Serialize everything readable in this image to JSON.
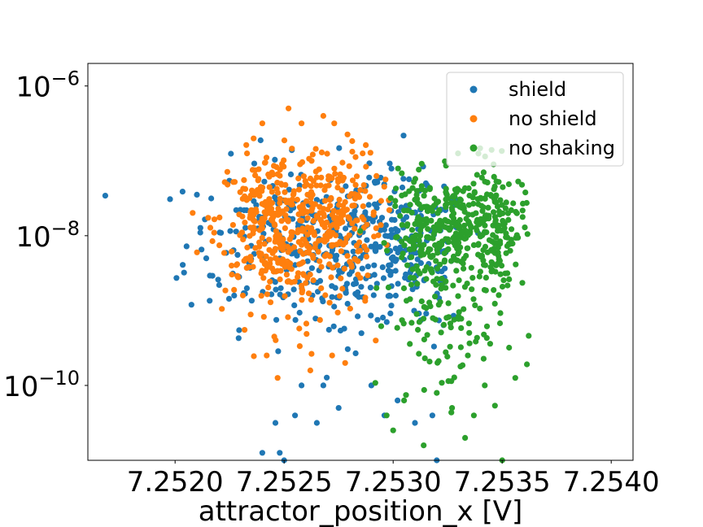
{
  "chart_data": {
    "type": "scatter",
    "title": "",
    "xlabel": "attractor_position_x [V]",
    "ylabel": "",
    "yscale": "log",
    "xlim": [
      7.2516,
      7.2541
    ],
    "ylim": [
      1e-11,
      2e-06
    ],
    "x_ticks": [
      {
        "value": 7.252,
        "label": "7.2520"
      },
      {
        "value": 7.2525,
        "label": "7.2525"
      },
      {
        "value": 7.253,
        "label": "7.2530"
      },
      {
        "value": 7.2535,
        "label": "7.2535"
      },
      {
        "value": 7.254,
        "label": "7.2540"
      }
    ],
    "y_ticks": [
      {
        "value": 1e-06,
        "base": "10",
        "exp": "−6"
      },
      {
        "value": 1e-08,
        "base": "10",
        "exp": "−8"
      },
      {
        "value": 1e-10,
        "base": "10",
        "exp": "−10"
      }
    ],
    "grid": false,
    "legend": "top-right",
    "series": [
      {
        "name": "shield",
        "color": "#1f77b4",
        "clusters": [
          {
            "x": 7.25255,
            "sx": 0.00025,
            "logy": -8.1,
            "sy": 0.55,
            "n": 220
          },
          {
            "x": 7.25285,
            "sx": 0.00015,
            "logy": -8.2,
            "sy": 0.5,
            "n": 140
          },
          {
            "x": 7.2531,
            "sx": 0.00012,
            "logy": -8.3,
            "sy": 0.5,
            "n": 110
          }
        ],
        "outliers": [
          [
            7.25248,
            -10.9
          ],
          [
            7.2525,
            -11.0
          ],
          [
            7.25246,
            -10.5
          ],
          [
            7.25255,
            -10.4
          ],
          [
            7.25275,
            -10.3
          ],
          [
            7.25258,
            -10.0
          ],
          [
            7.2529,
            -10.0
          ],
          [
            7.25296,
            -10.4
          ],
          [
            7.25302,
            -10.2
          ],
          [
            7.2531,
            -10.5
          ],
          [
            7.25318,
            -10.4
          ],
          [
            7.2532,
            -11.0
          ],
          [
            7.25268,
            -10.0
          ],
          [
            7.2524,
            -10.9
          ],
          [
            7.25265,
            -10.5
          ],
          [
            7.25315,
            -7.3
          ],
          [
            7.25312,
            -7.4
          ],
          [
            7.25306,
            -7.6
          ]
        ]
      },
      {
        "name": "no shield",
        "color": "#ff7f0e",
        "clusters": [
          {
            "x": 7.25243,
            "sx": 0.00012,
            "logy": -7.8,
            "sy": 0.45,
            "n": 230
          },
          {
            "x": 7.25272,
            "sx": 0.00011,
            "logy": -7.7,
            "sy": 0.45,
            "n": 200
          },
          {
            "x": 7.25255,
            "sx": 0.00015,
            "logy": -8.4,
            "sy": 0.45,
            "n": 100
          }
        ],
        "outliers": [
          [
            7.25236,
            -6.7
          ],
          [
            7.2524,
            -6.5
          ],
          [
            7.25252,
            -6.3
          ],
          [
            7.25258,
            -6.5
          ],
          [
            7.25268,
            -6.4
          ],
          [
            7.25273,
            -6.5
          ],
          [
            7.25233,
            -6.9
          ],
          [
            7.25286,
            -6.9
          ],
          [
            7.25242,
            -9.6
          ],
          [
            7.25247,
            -9.9
          ],
          [
            7.25262,
            -9.8
          ],
          [
            7.25278,
            -9.7
          ],
          [
            7.25272,
            -9.6
          ],
          [
            7.25292,
            -9.4
          ]
        ]
      },
      {
        "name": "no shaking",
        "color": "#2ca02c",
        "clusters": [
          {
            "x": 7.25315,
            "sx": 8e-05,
            "logy": -8.0,
            "sy": 0.4,
            "n": 180
          },
          {
            "x": 7.25333,
            "sx": 8e-05,
            "logy": -7.85,
            "sy": 0.35,
            "n": 150
          },
          {
            "x": 7.25348,
            "sx": 6e-05,
            "logy": -7.9,
            "sy": 0.4,
            "n": 120
          },
          {
            "x": 7.25325,
            "sx": 0.00013,
            "logy": -9.2,
            "sy": 0.5,
            "n": 90
          }
        ],
        "outliers": [
          [
            7.25314,
            -10.8
          ],
          [
            7.25337,
            -10.4
          ],
          [
            7.25327,
            -10.3
          ],
          [
            7.2535,
            -11.0
          ],
          [
            7.25305,
            -10.2
          ],
          [
            7.25342,
            -10.0
          ],
          [
            7.25356,
            -9.9
          ],
          [
            7.253,
            -10.6
          ],
          [
            7.2532,
            -10.1
          ],
          [
            7.25333,
            -10.7
          ],
          [
            7.25297,
            -10.4
          ]
        ]
      }
    ]
  }
}
